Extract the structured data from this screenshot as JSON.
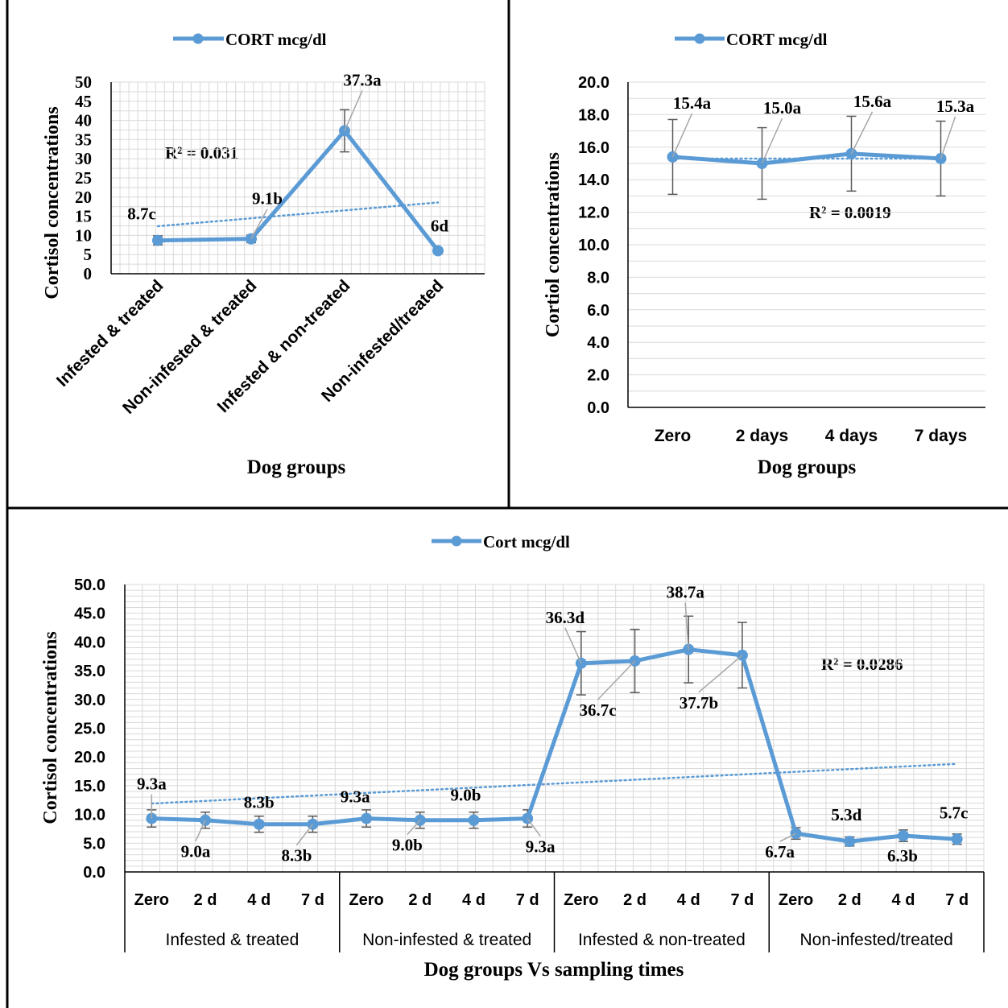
{
  "panels": [
    {
      "legend_label": "CORT mcg/dl",
      "r2_label": "R² = 0.031",
      "xlabel": "Dog groups",
      "ylabel": "Cortisol concentrations"
    },
    {
      "legend_label": "CORT mcg/dl",
      "r2_label": "R² = 0.0019",
      "xlabel": "Dog groups",
      "ylabel": "Cortiol concentrations"
    },
    {
      "legend_label": "Cort mcg/dl",
      "r2_label": "R² = 0.0286",
      "xlabel": "Dog groups Vs sampling times",
      "ylabel": "Cortisol concentrations"
    }
  ],
  "colors": {
    "series": "#5B9BD5",
    "trend": "#5B9BD5",
    "grid": "#D9D9D9",
    "error_bar": "#595959",
    "leader": "#A6A6A6"
  },
  "chart_data": [
    {
      "type": "line",
      "categories": [
        "Infested & treated",
        "Non-infested & treated",
        "Infested & non-treated",
        "Non-infested/treated"
      ],
      "series": [
        {
          "name": "CORT mcg/dl",
          "values": [
            8.7,
            9.1,
            37.3,
            6.0
          ]
        }
      ],
      "error": [
        1.2,
        1.0,
        5.5,
        0.6
      ],
      "data_labels": [
        "8.7c",
        "9.1b",
        "37.3a",
        "6d"
      ],
      "trendline": {
        "type": "linear",
        "r2": 0.031,
        "start": 12.4,
        "end": 18.6
      },
      "ylim": [
        0,
        50
      ],
      "yticks": [
        "0",
        "5",
        "10",
        "15",
        "20",
        "25",
        "30",
        "35",
        "40",
        "45",
        "50"
      ],
      "grid": true,
      "legend": "top"
    },
    {
      "type": "line",
      "categories": [
        "Zero",
        "2 days",
        "4 days",
        "7 days"
      ],
      "series": [
        {
          "name": "CORT mcg/dl",
          "values": [
            15.4,
            15.0,
            15.6,
            15.3
          ]
        }
      ],
      "error": [
        2.3,
        2.2,
        2.3,
        2.3
      ],
      "data_labels": [
        "15.4a",
        "15.0a",
        "15.6a",
        "15.3a"
      ],
      "trendline": {
        "type": "linear",
        "r2": 0.0019,
        "start": 15.3,
        "end": 15.3
      },
      "ylim": [
        0,
        20
      ],
      "yticks": [
        "0.0",
        "2.0",
        "4.0",
        "6.0",
        "8.0",
        "10.0",
        "12.0",
        "14.0",
        "16.0",
        "18.0",
        "20.0"
      ],
      "grid": true,
      "legend": "top"
    },
    {
      "type": "line",
      "categories": [
        "Zero",
        "2 d",
        "4 d",
        "7 d",
        "Zero",
        "2 d",
        "4 d",
        "7 d",
        "Zero",
        "2 d",
        "4 d",
        "7 d",
        "Zero",
        "2 d",
        "4 d",
        "7 d"
      ],
      "groups": [
        "Infested & treated",
        "Non-infested & treated",
        "Infested & non-treated",
        "Non-infested/treated"
      ],
      "series": [
        {
          "name": "Cort mcg/dl",
          "values": [
            9.3,
            9.0,
            8.3,
            8.3,
            9.3,
            9.0,
            9.0,
            9.3,
            36.3,
            36.7,
            38.7,
            37.7,
            6.7,
            5.3,
            6.3,
            5.7
          ]
        }
      ],
      "error": [
        1.5,
        1.4,
        1.4,
        1.4,
        1.5,
        1.4,
        1.4,
        1.5,
        5.5,
        5.5,
        5.8,
        5.7,
        1.0,
        0.8,
        1.0,
        0.9
      ],
      "data_labels": [
        "9.3a",
        "9.0a",
        "8.3b",
        "8.3b",
        "9.3a",
        "9.0b",
        "9.0b",
        "9.3a",
        "36.3d",
        "36.7c",
        "38.7a",
        "37.7b",
        "6.7a",
        "5.3d",
        "6.3b",
        "5.7c"
      ],
      "trendline": {
        "type": "linear",
        "r2": 0.0286,
        "start": 11.9,
        "end": 18.8
      },
      "ylim": [
        0,
        50
      ],
      "yticks": [
        "0.0",
        "5.0",
        "10.0",
        "15.0",
        "20.0",
        "25.0",
        "30.0",
        "35.0",
        "40.0",
        "45.0",
        "50.0"
      ],
      "grid": true,
      "legend": "top"
    }
  ]
}
